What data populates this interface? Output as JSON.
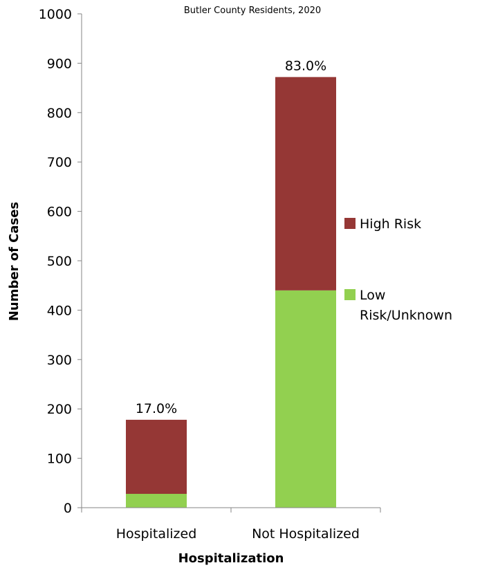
{
  "chart_data": {
    "type": "bar",
    "stacked": true,
    "subtitle": "Butler County Residents, 2020",
    "xlabel": "Hospitalization",
    "ylabel": "Number of Cases",
    "categories": [
      "Hospitalized",
      "Not Hospitalized"
    ],
    "series": [
      {
        "name": "Low Risk/Unknown",
        "values": [
          28,
          440
        ],
        "color": "#92d050"
      },
      {
        "name": "High Risk",
        "values": [
          150,
          432
        ],
        "color": "#953735"
      }
    ],
    "data_labels": [
      "17.0%",
      "83.0%"
    ],
    "ylim": [
      0,
      1000
    ],
    "yticks": [
      0,
      100,
      200,
      300,
      400,
      500,
      600,
      700,
      800,
      900,
      1000
    ],
    "grid": false,
    "legend_position": "right",
    "legend_lines": {
      "high_risk": [
        "High Risk"
      ],
      "low_risk": [
        "Low",
        "Risk/Unknown"
      ]
    }
  }
}
